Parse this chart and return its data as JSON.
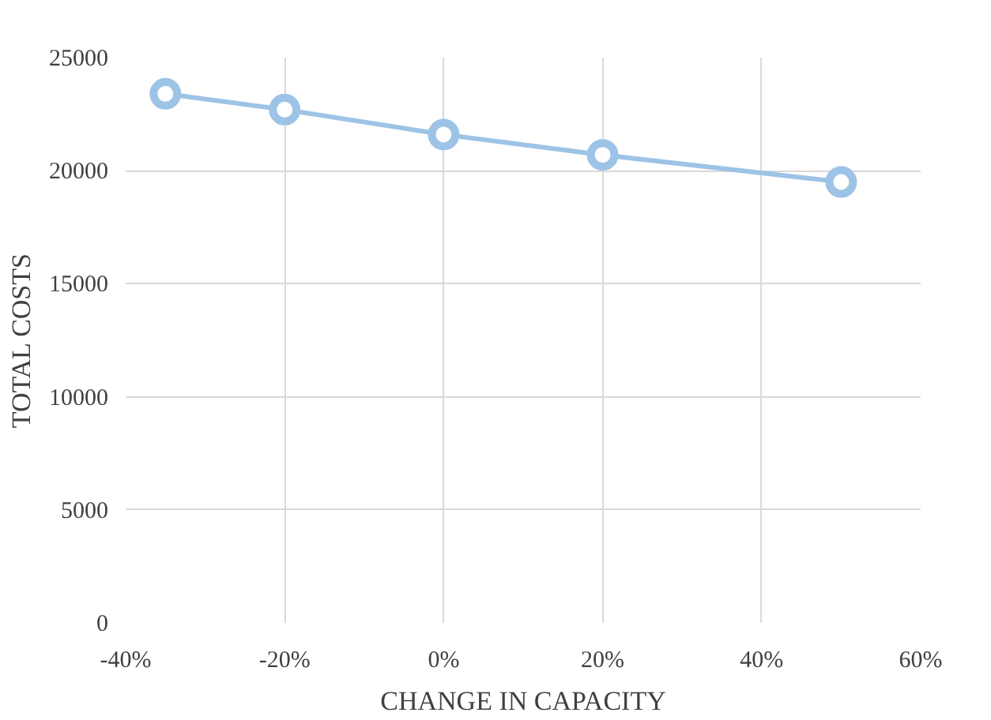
{
  "chart_data": {
    "type": "line",
    "xlabel": "CHANGE IN CAPACITY",
    "ylabel": "TOTAL COSTS",
    "x": [
      -35,
      -20,
      0,
      20,
      50
    ],
    "series": [
      {
        "color": "#9dc3e6",
        "values": [
          23400,
          22700,
          21600,
          20700,
          19500
        ]
      }
    ],
    "xlim": [
      -40,
      60
    ],
    "xticks": [
      {
        "value": -40,
        "label": "-40%"
      },
      {
        "value": -20,
        "label": "-20%"
      },
      {
        "value": 0,
        "label": "0%"
      },
      {
        "value": 20,
        "label": "20%"
      },
      {
        "value": 40,
        "label": "40%"
      },
      {
        "value": 60,
        "label": "60%"
      }
    ],
    "ylim": [
      0,
      25000
    ],
    "yticks": [
      0,
      5000,
      10000,
      15000,
      20000,
      25000
    ],
    "grid": true,
    "marker": "circle",
    "line_style": "solid"
  }
}
